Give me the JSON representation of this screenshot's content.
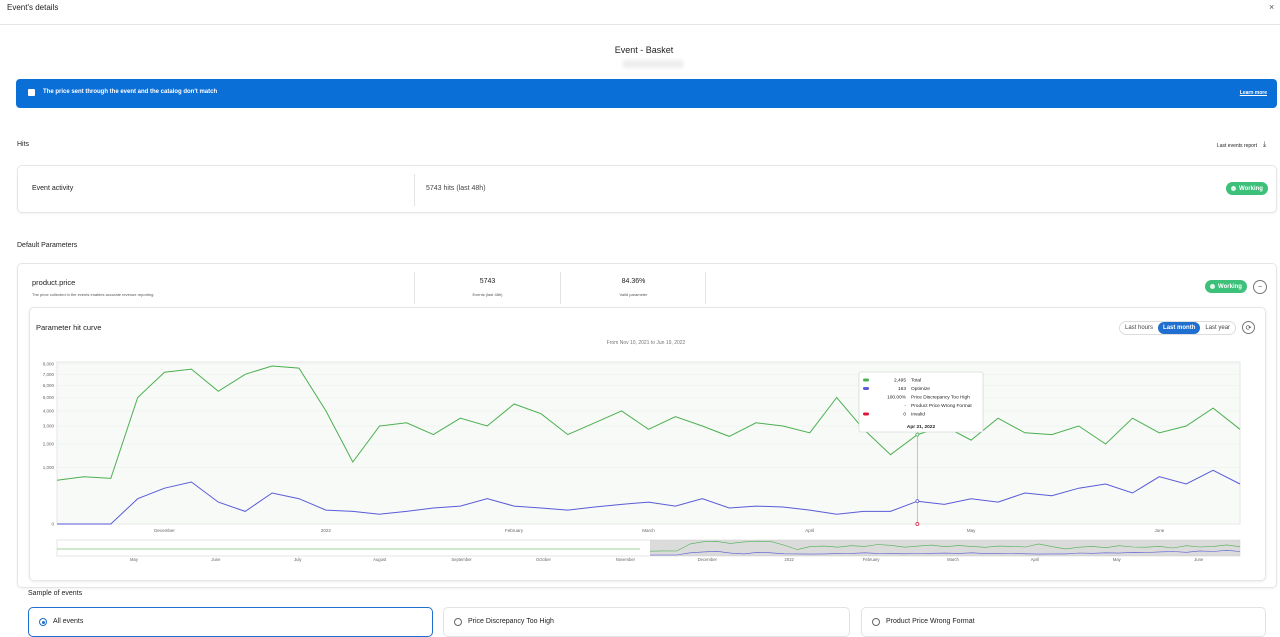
{
  "header": {
    "title": "Event's details"
  },
  "event_title": "Event - Basket",
  "alert": {
    "message": "The price sent through the event and the catalog don't match",
    "link": "Learn more"
  },
  "hits": {
    "heading": "Hits",
    "report_link": "Last events report",
    "row": {
      "label": "Event activity",
      "hits": "5743 hits (last 48h)",
      "status": "Working"
    }
  },
  "parameters": {
    "heading": "Default Parameters",
    "item": {
      "name": "product.price",
      "description": "The price collected in the events enables accurate revenue reporting.",
      "events": "5743",
      "events_label": "Events (last 48h)",
      "valid": "84.36%",
      "valid_label": "Valid parameter",
      "status": "Working"
    }
  },
  "controls": {
    "options": [
      "Last hours",
      "Last month",
      "Last year"
    ],
    "selected": 1
  },
  "chart_data": {
    "type": "line",
    "title": "Parameter hit curve",
    "subtitle": "From Nov 10, 2021 to Jun 19, 2022",
    "categories": [
      null,
      null,
      null,
      null,
      "December",
      null,
      null,
      null,
      null,
      null,
      "2022",
      null,
      null,
      null,
      null,
      null,
      null,
      "February",
      null,
      null,
      null,
      null,
      "March",
      null,
      null,
      null,
      null,
      null,
      "April",
      null,
      null,
      null,
      null,
      null,
      "May",
      null,
      null,
      null,
      null,
      null,
      null,
      "June",
      null,
      null,
      null
    ],
    "series": [
      {
        "name": "Total",
        "color": "#4caf50",
        "values": [
          600,
          700,
          650,
          5000,
          7200,
          7500,
          5500,
          7000,
          7800,
          7600,
          4000,
          1200,
          3000,
          3200,
          2500,
          3500,
          3000,
          4500,
          3800,
          2500,
          3200,
          4000,
          2800,
          3600,
          3000,
          2400,
          3200,
          3000,
          2600,
          5000,
          2800,
          1500,
          2495,
          3000,
          2200,
          3500,
          2600,
          2500,
          3000,
          2000,
          3500,
          2600,
          3000,
          4200,
          2800
        ]
      },
      {
        "name": "Optimize",
        "color": "#5a5ad8",
        "values": [
          0,
          0,
          0,
          200,
          400,
          550,
          150,
          50,
          300,
          200,
          60,
          50,
          30,
          50,
          80,
          100,
          200,
          100,
          80,
          60,
          90,
          120,
          150,
          100,
          200,
          80,
          100,
          90,
          60,
          30,
          50,
          50,
          163,
          120,
          200,
          150,
          300,
          250,
          400,
          500,
          300,
          700,
          500,
          900,
          500
        ]
      }
    ],
    "yscale": "sqrt",
    "ylim": [
      0,
      8000
    ],
    "yticks": [
      0,
      {
        "value": 1000,
        "label": "1,000"
      },
      {
        "value": 2000,
        "label": "2,000"
      },
      {
        "value": 3000,
        "label": "3,000"
      },
      {
        "value": 4000,
        "label": "4,000"
      },
      {
        "value": 5000,
        "label": "5,000"
      },
      {
        "value": 6000,
        "label": "6,000"
      },
      {
        "value": 7000,
        "label": "7,000"
      },
      {
        "value": 8000,
        "label": "8,000"
      }
    ],
    "grid": true,
    "tooltip": {
      "index": 32,
      "date": "Apr 21, 2022",
      "rows": [
        {
          "series": 0,
          "value": "2,495"
        },
        {
          "series": 1,
          "value": "163"
        },
        {
          "value": "100.00%",
          "name": "Price Discrepancy Too High"
        },
        {
          "name": "Product Price Wrong Format"
        },
        {
          "value": "0",
          "name": "Invalid",
          "color": "#e0173d"
        }
      ]
    },
    "navigator_labels": [
      "May",
      "June",
      "July",
      "August",
      "September",
      "October",
      "November",
      "December",
      "2022",
      "February",
      "March",
      "April",
      "May",
      "June"
    ]
  },
  "samples": {
    "heading": "Sample of events",
    "options": [
      "All events",
      "Price Discrepancy Too High",
      "Product Price Wrong Format"
    ],
    "selected": 0
  }
}
